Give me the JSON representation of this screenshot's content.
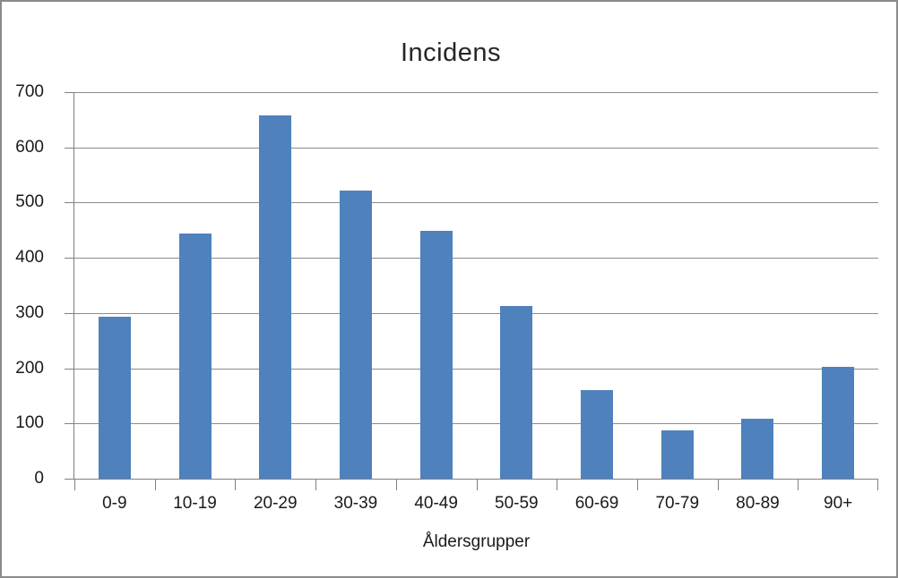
{
  "chart_data": {
    "type": "bar",
    "title": "Incidens",
    "xlabel": "Åldersgrupper",
    "ylabel": "",
    "categories": [
      "0-9",
      "10-19",
      "20-29",
      "30-39",
      "40-49",
      "50-59",
      "60-69",
      "70-79",
      "80-89",
      "90+"
    ],
    "values": [
      294,
      444,
      658,
      521,
      449,
      313,
      160,
      87,
      108,
      203
    ],
    "ylim": [
      0,
      700
    ],
    "yticks": [
      0,
      100,
      200,
      300,
      400,
      500,
      600,
      700
    ],
    "grid": "horizontal",
    "legend": "none"
  },
  "colors": {
    "bar": "#4F81BD",
    "gridline": "#8c8c8c",
    "axis": "#808080",
    "frame_border": "#8b8b8b",
    "text": "#1a1a1a",
    "title_text": "#262626"
  }
}
